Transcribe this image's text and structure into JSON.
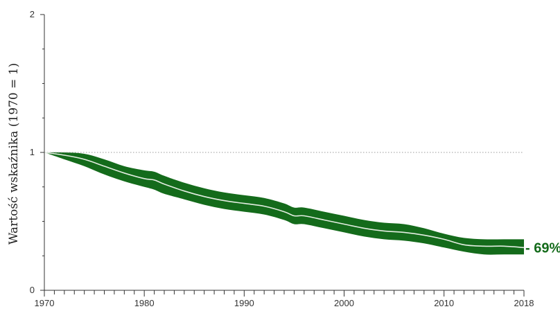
{
  "chart_data": {
    "type": "area",
    "title": "",
    "xlabel": "",
    "ylabel": "Wartość wskaźnika (1970 = 1)",
    "xlim": [
      1970,
      2018
    ],
    "ylim": [
      0,
      2
    ],
    "x_ticks": [
      1970,
      1980,
      1990,
      2000,
      2010,
      2018
    ],
    "y_ticks": [
      0,
      1,
      2
    ],
    "reference_line": 1,
    "series": [
      {
        "x": [
          1970,
          1972,
          1974,
          1976,
          1978,
          1980,
          1981,
          1982,
          1984,
          1986,
          1988,
          1990,
          1992,
          1994,
          1995,
          1996,
          1998,
          2000,
          2002,
          2004,
          2006,
          2008,
          2010,
          2012,
          2014,
          2016,
          2018
        ],
        "mean": [
          1.0,
          0.98,
          0.95,
          0.9,
          0.85,
          0.81,
          0.8,
          0.77,
          0.72,
          0.68,
          0.65,
          0.63,
          0.61,
          0.57,
          0.54,
          0.54,
          0.51,
          0.48,
          0.45,
          0.43,
          0.42,
          0.4,
          0.37,
          0.33,
          0.32,
          0.32,
          0.31
        ],
        "lower": [
          1.0,
          0.95,
          0.9,
          0.84,
          0.79,
          0.75,
          0.73,
          0.7,
          0.66,
          0.62,
          0.59,
          0.57,
          0.55,
          0.51,
          0.48,
          0.48,
          0.45,
          0.42,
          0.39,
          0.37,
          0.36,
          0.34,
          0.31,
          0.28,
          0.26,
          0.26,
          0.26
        ],
        "upper": [
          1.0,
          1.0,
          0.99,
          0.95,
          0.9,
          0.87,
          0.86,
          0.83,
          0.78,
          0.74,
          0.71,
          0.69,
          0.67,
          0.63,
          0.6,
          0.6,
          0.57,
          0.54,
          0.51,
          0.49,
          0.48,
          0.45,
          0.41,
          0.38,
          0.37,
          0.37,
          0.37
        ]
      }
    ],
    "end_label": "- 69%",
    "colors": {
      "band": "#146b1b",
      "mean_line": "#e4ede2",
      "axis": "#333333",
      "reference": "#9a9a9a",
      "label": "#146b1b"
    },
    "grid": false
  }
}
